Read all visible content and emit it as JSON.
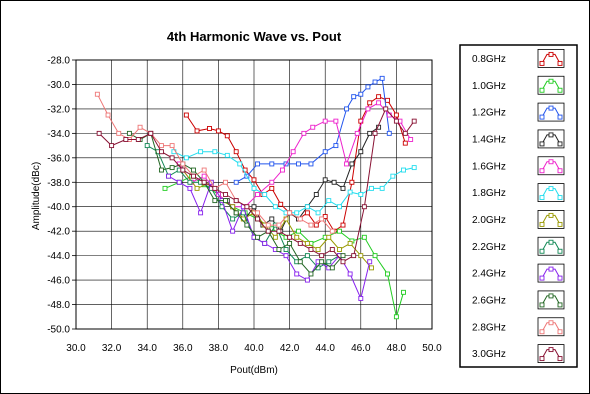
{
  "chart_data": {
    "type": "line",
    "title": "4th Harmonic Wave vs. Pout",
    "xlabel": "Pout(dBm)",
    "ylabel": "Amplitude(dBc)",
    "xlim": [
      30.0,
      50.0
    ],
    "ylim": [
      -50.0,
      -28.0
    ],
    "x_ticks": [
      "30.0",
      "32.0",
      "34.0",
      "36.0",
      "38.0",
      "40.0",
      "42.0",
      "44.0",
      "46.0",
      "48.0",
      "50.0"
    ],
    "y_ticks": [
      "-28.0",
      "-30.0",
      "-32.0",
      "-34.0",
      "-36.0",
      "-38.0",
      "-40.0",
      "-42.0",
      "-44.0",
      "-46.0",
      "-48.0",
      "-50.0"
    ],
    "grid": true,
    "legend_position": "right",
    "series": [
      {
        "name": "0.8GHz",
        "color": "#cc0000",
        "x": [
          36.2,
          36.8,
          37.5,
          38.0,
          38.5,
          39.0,
          39.5,
          40.0,
          40.5,
          41.0,
          41.5,
          42.0,
          42.5,
          43.0,
          43.5,
          44.0,
          44.5,
          45.0,
          45.5,
          46.0,
          46.5,
          47.0,
          47.5,
          48.0,
          48.5
        ],
        "y": [
          -32.5,
          -33.8,
          -33.6,
          -33.8,
          -34.2,
          -35.5,
          -37.0,
          -37.8,
          -39.0,
          -38.5,
          -39.8,
          -40.5,
          -41.0,
          -40.5,
          -41.5,
          -40.8,
          -42.0,
          -41.5,
          -38.0,
          -33.0,
          -31.5,
          -31.0,
          -31.3,
          -32.5,
          -34.8
        ]
      },
      {
        "name": "1.0GHz",
        "color": "#22cc22",
        "x": [
          35.0,
          35.8,
          36.5,
          37.2,
          38.0,
          38.8,
          39.5,
          40.2,
          41.0,
          41.8,
          42.5,
          43.2,
          44.0,
          44.8,
          45.5,
          46.2,
          46.8,
          47.5,
          48.0,
          48.4
        ],
        "y": [
          -38.5,
          -38.0,
          -37.5,
          -38.2,
          -39.0,
          -40.0,
          -40.5,
          -41.0,
          -41.8,
          -42.5,
          -42.0,
          -43.0,
          -42.5,
          -42.0,
          -42.8,
          -42.5,
          -44.0,
          -45.5,
          -49.0,
          -47.0
        ]
      },
      {
        "name": "1.2GHz",
        "color": "#2255ee",
        "x": [
          39.0,
          39.6,
          40.2,
          41.0,
          41.8,
          42.5,
          43.2,
          44.0,
          44.6,
          45.2,
          45.6,
          46.0,
          46.4,
          46.8,
          47.2,
          47.6
        ],
        "y": [
          -38.0,
          -37.5,
          -36.5,
          -36.5,
          -36.5,
          -36.5,
          -36.5,
          -35.5,
          -35.0,
          -32.0,
          -31.0,
          -30.8,
          -30.2,
          -29.8,
          -29.5,
          -34.0
        ]
      },
      {
        "name": "1.4GHz",
        "color": "#222222",
        "x": [
          38.5,
          39.0,
          39.5,
          40.0,
          40.5,
          41.0,
          41.5,
          42.0,
          42.5,
          43.0,
          43.5,
          44.0,
          44.5,
          45.0,
          45.5,
          46.0,
          46.5,
          47.0
        ],
        "y": [
          -39.5,
          -40.5,
          -41.0,
          -40.0,
          -41.5,
          -41.0,
          -42.0,
          -40.5,
          -41.0,
          -40.0,
          -39.0,
          -37.8,
          -38.0,
          -38.5,
          -36.5,
          -35.5,
          -34.0,
          -33.5
        ]
      },
      {
        "name": "1.6GHz",
        "color": "#ee22cc",
        "x": [
          35.8,
          36.5,
          37.2,
          38.0,
          38.8,
          39.5,
          40.2,
          41.0,
          41.6,
          42.2,
          42.8,
          43.3,
          44.0,
          44.6,
          45.2,
          45.8,
          46.4,
          47.0,
          47.6,
          48.2,
          48.8
        ],
        "y": [
          -36.5,
          -38.0,
          -37.5,
          -39.0,
          -40.0,
          -40.0,
          -39.0,
          -38.0,
          -37.0,
          -35.5,
          -34.0,
          -33.5,
          -33.0,
          -33.0,
          -36.5,
          -34.0,
          -32.0,
          -31.5,
          -32.5,
          -33.0,
          -34.5
        ]
      },
      {
        "name": "1.8GHz",
        "color": "#22ddee",
        "x": [
          35.5,
          36.2,
          37.0,
          37.8,
          38.5,
          39.2,
          40.0,
          40.6,
          41.2,
          41.8,
          42.4,
          43.0,
          43.6,
          44.2,
          44.8,
          45.4,
          46.0,
          46.6,
          47.2,
          47.8,
          48.4,
          49.0
        ],
        "y": [
          -35.5,
          -36.0,
          -35.5,
          -35.5,
          -35.8,
          -36.5,
          -38.5,
          -39.0,
          -40.0,
          -40.5,
          -40.5,
          -40.0,
          -40.5,
          -39.5,
          -40.0,
          -38.8,
          -39.0,
          -38.5,
          -38.5,
          -37.5,
          -37.0,
          -36.8
        ]
      },
      {
        "name": "2.0GHz",
        "color": "#999900",
        "x": [
          36.0,
          36.8,
          37.6,
          38.2,
          38.8,
          39.4,
          40.0,
          40.6,
          41.2,
          41.8,
          42.4,
          43.0,
          43.6,
          44.2,
          44.8,
          45.4,
          46.0,
          46.6
        ],
        "y": [
          -37.0,
          -38.5,
          -38.0,
          -39.5,
          -40.0,
          -41.0,
          -40.5,
          -41.5,
          -42.5,
          -41.0,
          -42.5,
          -43.0,
          -43.5,
          -42.5,
          -43.5,
          -43.0,
          -44.0,
          -45.0
        ]
      },
      {
        "name": "2.2GHz",
        "color": "#118855",
        "x": [
          34.0,
          34.6,
          35.2,
          35.8,
          36.4,
          37.0,
          37.6,
          38.2,
          38.8,
          39.4,
          40.0,
          40.6,
          41.2,
          41.8,
          42.4,
          43.0,
          43.6,
          44.2,
          44.8
        ],
        "y": [
          -35.0,
          -35.5,
          -37.5,
          -37.0,
          -38.0,
          -38.0,
          -38.5,
          -40.0,
          -41.0,
          -40.5,
          -42.5,
          -43.0,
          -41.5,
          -43.5,
          -44.5,
          -44.0,
          -45.0,
          -44.5,
          -44.0
        ]
      },
      {
        "name": "2.4GHz",
        "color": "#8822ee",
        "x": [
          35.2,
          35.8,
          36.4,
          37.0,
          37.6,
          38.2,
          38.8,
          39.4,
          40.0,
          40.6,
          41.2,
          41.8,
          42.4,
          43.0,
          43.6,
          44.2,
          44.8,
          45.4,
          46.0,
          46.5
        ],
        "y": [
          -37.5,
          -38.0,
          -38.5,
          -40.5,
          -38.0,
          -39.5,
          -42.0,
          -40.0,
          -42.5,
          -43.0,
          -43.5,
          -44.0,
          -45.5,
          -46.0,
          -44.5,
          -45.0,
          -44.0,
          -45.5,
          -47.5,
          -44.5
        ]
      },
      {
        "name": "2.6GHz",
        "color": "#226622",
        "x": [
          33.0,
          33.6,
          34.2,
          34.8,
          35.4,
          36.0,
          36.6,
          37.2,
          37.8,
          38.4,
          39.0,
          39.6,
          40.2,
          40.8,
          41.4,
          42.0,
          42.6,
          43.2,
          43.8,
          44.4,
          45.0
        ],
        "y": [
          -34.0,
          -34.5,
          -34.0,
          -37.0,
          -36.8,
          -36.5,
          -37.0,
          -38.0,
          -39.5,
          -39.5,
          -40.5,
          -41.5,
          -42.5,
          -42.0,
          -43.5,
          -43.0,
          -44.5,
          -45.5,
          -44.5,
          -45.0,
          -44.0
        ]
      },
      {
        "name": "2.8GHz",
        "color": "#ee7777",
        "x": [
          31.2,
          31.8,
          32.4,
          33.0,
          33.6,
          34.2,
          34.8,
          35.4,
          36.0,
          36.6,
          37.2,
          37.8,
          38.4,
          39.0,
          39.6,
          40.2,
          40.8,
          41.4,
          42.0,
          42.6,
          43.2,
          43.8,
          44.4
        ],
        "y": [
          -30.8,
          -32.5,
          -34.0,
          -34.5,
          -33.5,
          -34.0,
          -35.0,
          -35.0,
          -36.5,
          -37.5,
          -37.0,
          -38.5,
          -38.0,
          -39.5,
          -40.0,
          -40.5,
          -41.5,
          -41.5,
          -40.5,
          -41.0,
          -41.5,
          -41.0,
          -42.0
        ]
      },
      {
        "name": "3.0GHz",
        "color": "#881133",
        "x": [
          31.3,
          32.0,
          32.8,
          33.5,
          34.2,
          34.8,
          35.4,
          36.0,
          36.6,
          37.2,
          37.8,
          38.4,
          39.0,
          39.6,
          40.2,
          40.8,
          41.4,
          42.0,
          42.6,
          43.2,
          43.8,
          44.4,
          45.0,
          45.6,
          46.2,
          46.8,
          47.4,
          48.0,
          48.5,
          49.0
        ],
        "y": [
          -34.0,
          -35.0,
          -34.5,
          -34.5,
          -34.0,
          -35.5,
          -36.0,
          -37.0,
          -37.5,
          -38.0,
          -38.5,
          -39.0,
          -39.5,
          -40.0,
          -41.0,
          -42.0,
          -42.0,
          -42.5,
          -43.0,
          -43.5,
          -44.0,
          -43.5,
          -44.5,
          -44.0,
          -40.0,
          -34.0,
          -32.0,
          -33.0,
          -34.0,
          -33.0
        ]
      }
    ]
  }
}
